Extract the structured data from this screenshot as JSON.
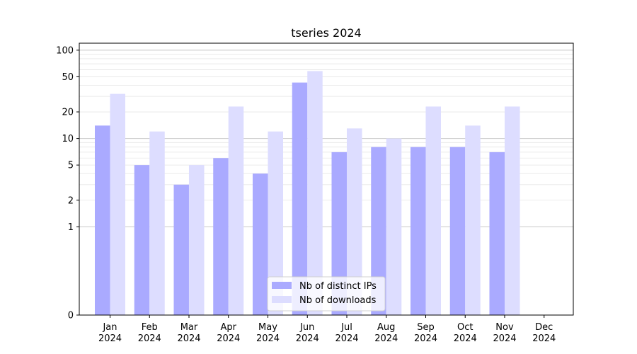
{
  "chart_data": {
    "type": "bar",
    "title": "tseries 2024",
    "xlabel": "",
    "ylabel": "",
    "yscale": "symlog",
    "ylim": [
      0,
      120
    ],
    "ytick_values": [
      0,
      1,
      2,
      5,
      10,
      20,
      50,
      100
    ],
    "ytick_labels": [
      "0",
      "1",
      "2",
      "5",
      "10",
      "20",
      "50",
      "100"
    ],
    "categories": [
      "Jan\n2024",
      "Feb\n2024",
      "Mar\n2024",
      "Apr\n2024",
      "May\n2024",
      "Jun\n2024",
      "Jul\n2024",
      "Aug\n2024",
      "Sep\n2024",
      "Oct\n2024",
      "Nov\n2024",
      "Dec\n2024"
    ],
    "category_lines": [
      [
        "Jan",
        "2024"
      ],
      [
        "Feb",
        "2024"
      ],
      [
        "Mar",
        "2024"
      ],
      [
        "Apr",
        "2024"
      ],
      [
        "May",
        "2024"
      ],
      [
        "Jun",
        "2024"
      ],
      [
        "Jul",
        "2024"
      ],
      [
        "Aug",
        "2024"
      ],
      [
        "Sep",
        "2024"
      ],
      [
        "Oct",
        "2024"
      ],
      [
        "Nov",
        "2024"
      ],
      [
        "Dec",
        "2024"
      ]
    ],
    "series": [
      {
        "name": "Nb of distinct IPs",
        "color": "#aaaaff",
        "values": [
          14,
          5,
          3,
          6,
          4,
          43,
          7,
          8,
          8,
          8,
          7,
          0
        ]
      },
      {
        "name": "Nb of downloads",
        "color": "#ddddff",
        "values": [
          32,
          12,
          5,
          23,
          12,
          58,
          13,
          10,
          23,
          14,
          23,
          0
        ]
      }
    ],
    "grid": true,
    "legend_position": "bottom-center"
  }
}
